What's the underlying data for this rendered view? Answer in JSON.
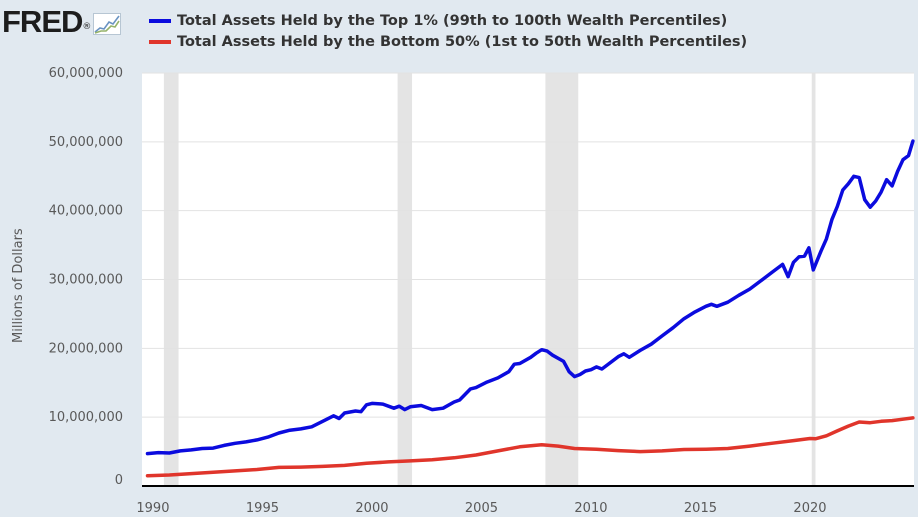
{
  "header": {
    "logo_text": "FRED",
    "logo_mark": "®",
    "logo_icon": "chart-line-icon"
  },
  "chart_data": {
    "type": "line",
    "title": "",
    "xlabel": "",
    "ylabel": "Millions of Dollars",
    "xlim": [
      1989.5,
      2024.75
    ],
    "ylim": [
      0,
      60000000
    ],
    "yticks": [
      0,
      10000000,
      20000000,
      30000000,
      40000000,
      50000000,
      60000000
    ],
    "ytick_labels": [
      "0",
      "10,000,000",
      "20,000,000",
      "30,000,000",
      "40,000,000",
      "50,000,000",
      "60,000,000"
    ],
    "xticks": [
      1990,
      1995,
      2000,
      2005,
      2010,
      2015,
      2020
    ],
    "xtick_labels": [
      "1990",
      "1995",
      "2000",
      "2005",
      "2010",
      "2015",
      "2020"
    ],
    "grid": "horizontal",
    "recessions": [
      [
        1990.5,
        1991.17
      ],
      [
        2001.17,
        2001.83
      ],
      [
        2007.92,
        2009.42
      ],
      [
        2020.08,
        2020.25
      ]
    ],
    "series": [
      {
        "name": "Total Assets Held by the Top 1% (99th to 100th Wealth Percentiles)",
        "color": "#0b0bde",
        "points": [
          [
            1989.75,
            4700000
          ],
          [
            1990.25,
            4850000
          ],
          [
            1990.75,
            4800000
          ],
          [
            1991.25,
            5100000
          ],
          [
            1991.75,
            5250000
          ],
          [
            1992.25,
            5450000
          ],
          [
            1992.75,
            5500000
          ],
          [
            1993.25,
            5900000
          ],
          [
            1993.75,
            6200000
          ],
          [
            1994.25,
            6400000
          ],
          [
            1994.75,
            6700000
          ],
          [
            1995.25,
            7100000
          ],
          [
            1995.75,
            7700000
          ],
          [
            1996.25,
            8100000
          ],
          [
            1996.75,
            8300000
          ],
          [
            1997.25,
            8600000
          ],
          [
            1997.75,
            9400000
          ],
          [
            1998.25,
            10200000
          ],
          [
            1998.5,
            9800000
          ],
          [
            1998.75,
            10600000
          ],
          [
            1999.25,
            10900000
          ],
          [
            1999.5,
            10800000
          ],
          [
            1999.75,
            11800000
          ],
          [
            2000.0,
            12000000
          ],
          [
            2000.5,
            11900000
          ],
          [
            2001.0,
            11300000
          ],
          [
            2001.25,
            11600000
          ],
          [
            2001.5,
            11100000
          ],
          [
            2001.75,
            11500000
          ],
          [
            2002.25,
            11700000
          ],
          [
            2002.75,
            11100000
          ],
          [
            2003.25,
            11300000
          ],
          [
            2003.75,
            12200000
          ],
          [
            2004.0,
            12500000
          ],
          [
            2004.25,
            13300000
          ],
          [
            2004.5,
            14100000
          ],
          [
            2004.75,
            14300000
          ],
          [
            2005.25,
            15100000
          ],
          [
            2005.75,
            15700000
          ],
          [
            2006.25,
            16600000
          ],
          [
            2006.5,
            17700000
          ],
          [
            2006.75,
            17800000
          ],
          [
            2007.25,
            18700000
          ],
          [
            2007.5,
            19300000
          ],
          [
            2007.75,
            19800000
          ],
          [
            2008.0,
            19600000
          ],
          [
            2008.25,
            19000000
          ],
          [
            2008.75,
            18100000
          ],
          [
            2009.0,
            16600000
          ],
          [
            2009.25,
            15900000
          ],
          [
            2009.5,
            16200000
          ],
          [
            2009.75,
            16700000
          ],
          [
            2010.0,
            16900000
          ],
          [
            2010.25,
            17300000
          ],
          [
            2010.5,
            17000000
          ],
          [
            2010.75,
            17600000
          ],
          [
            2011.25,
            18800000
          ],
          [
            2011.5,
            19200000
          ],
          [
            2011.75,
            18700000
          ],
          [
            2012.25,
            19700000
          ],
          [
            2012.75,
            20600000
          ],
          [
            2013.25,
            21800000
          ],
          [
            2013.75,
            23000000
          ],
          [
            2014.25,
            24300000
          ],
          [
            2014.75,
            25300000
          ],
          [
            2015.25,
            26100000
          ],
          [
            2015.5,
            26400000
          ],
          [
            2015.75,
            26100000
          ],
          [
            2016.25,
            26700000
          ],
          [
            2016.75,
            27700000
          ],
          [
            2017.25,
            28600000
          ],
          [
            2017.75,
            29800000
          ],
          [
            2018.25,
            31000000
          ],
          [
            2018.5,
            31600000
          ],
          [
            2018.75,
            32200000
          ],
          [
            2019.0,
            30400000
          ],
          [
            2019.25,
            32500000
          ],
          [
            2019.5,
            33300000
          ],
          [
            2019.75,
            33400000
          ],
          [
            2019.95,
            34600000
          ],
          [
            2020.15,
            31400000
          ],
          [
            2020.5,
            34100000
          ],
          [
            2020.75,
            35900000
          ],
          [
            2021.0,
            38700000
          ],
          [
            2021.25,
            40600000
          ],
          [
            2021.5,
            43000000
          ],
          [
            2021.75,
            43900000
          ],
          [
            2022.0,
            45000000
          ],
          [
            2022.25,
            44800000
          ],
          [
            2022.5,
            41600000
          ],
          [
            2022.75,
            40500000
          ],
          [
            2023.0,
            41400000
          ],
          [
            2023.25,
            42700000
          ],
          [
            2023.5,
            44500000
          ],
          [
            2023.75,
            43600000
          ],
          [
            2024.0,
            45700000
          ],
          [
            2024.25,
            47400000
          ],
          [
            2024.5,
            48000000
          ],
          [
            2024.7,
            50100000
          ]
        ]
      },
      {
        "name": "Total Assets Held by the Bottom 50% (1st to 50th Wealth Percentiles)",
        "color": "#e0352b",
        "points": [
          [
            1989.75,
            1500000
          ],
          [
            1990.75,
            1600000
          ],
          [
            1991.75,
            1800000
          ],
          [
            1992.75,
            2000000
          ],
          [
            1993.75,
            2200000
          ],
          [
            1994.75,
            2400000
          ],
          [
            1995.75,
            2700000
          ],
          [
            1996.75,
            2750000
          ],
          [
            1997.75,
            2850000
          ],
          [
            1998.75,
            3000000
          ],
          [
            1999.75,
            3300000
          ],
          [
            2000.75,
            3500000
          ],
          [
            2001.75,
            3650000
          ],
          [
            2002.75,
            3800000
          ],
          [
            2003.75,
            4100000
          ],
          [
            2004.75,
            4500000
          ],
          [
            2005.75,
            5100000
          ],
          [
            2006.75,
            5700000
          ],
          [
            2007.75,
            6000000
          ],
          [
            2008.5,
            5800000
          ],
          [
            2009.25,
            5450000
          ],
          [
            2010.25,
            5350000
          ],
          [
            2011.25,
            5150000
          ],
          [
            2012.25,
            5000000
          ],
          [
            2013.25,
            5100000
          ],
          [
            2014.25,
            5300000
          ],
          [
            2015.25,
            5350000
          ],
          [
            2016.25,
            5450000
          ],
          [
            2017.25,
            5800000
          ],
          [
            2018.25,
            6200000
          ],
          [
            2019.25,
            6600000
          ],
          [
            2020.0,
            6900000
          ],
          [
            2020.25,
            6850000
          ],
          [
            2020.75,
            7300000
          ],
          [
            2021.25,
            8000000
          ],
          [
            2021.75,
            8700000
          ],
          [
            2022.25,
            9300000
          ],
          [
            2022.75,
            9200000
          ],
          [
            2023.25,
            9400000
          ],
          [
            2023.75,
            9500000
          ],
          [
            2024.25,
            9700000
          ],
          [
            2024.7,
            9900000
          ]
        ]
      }
    ]
  }
}
